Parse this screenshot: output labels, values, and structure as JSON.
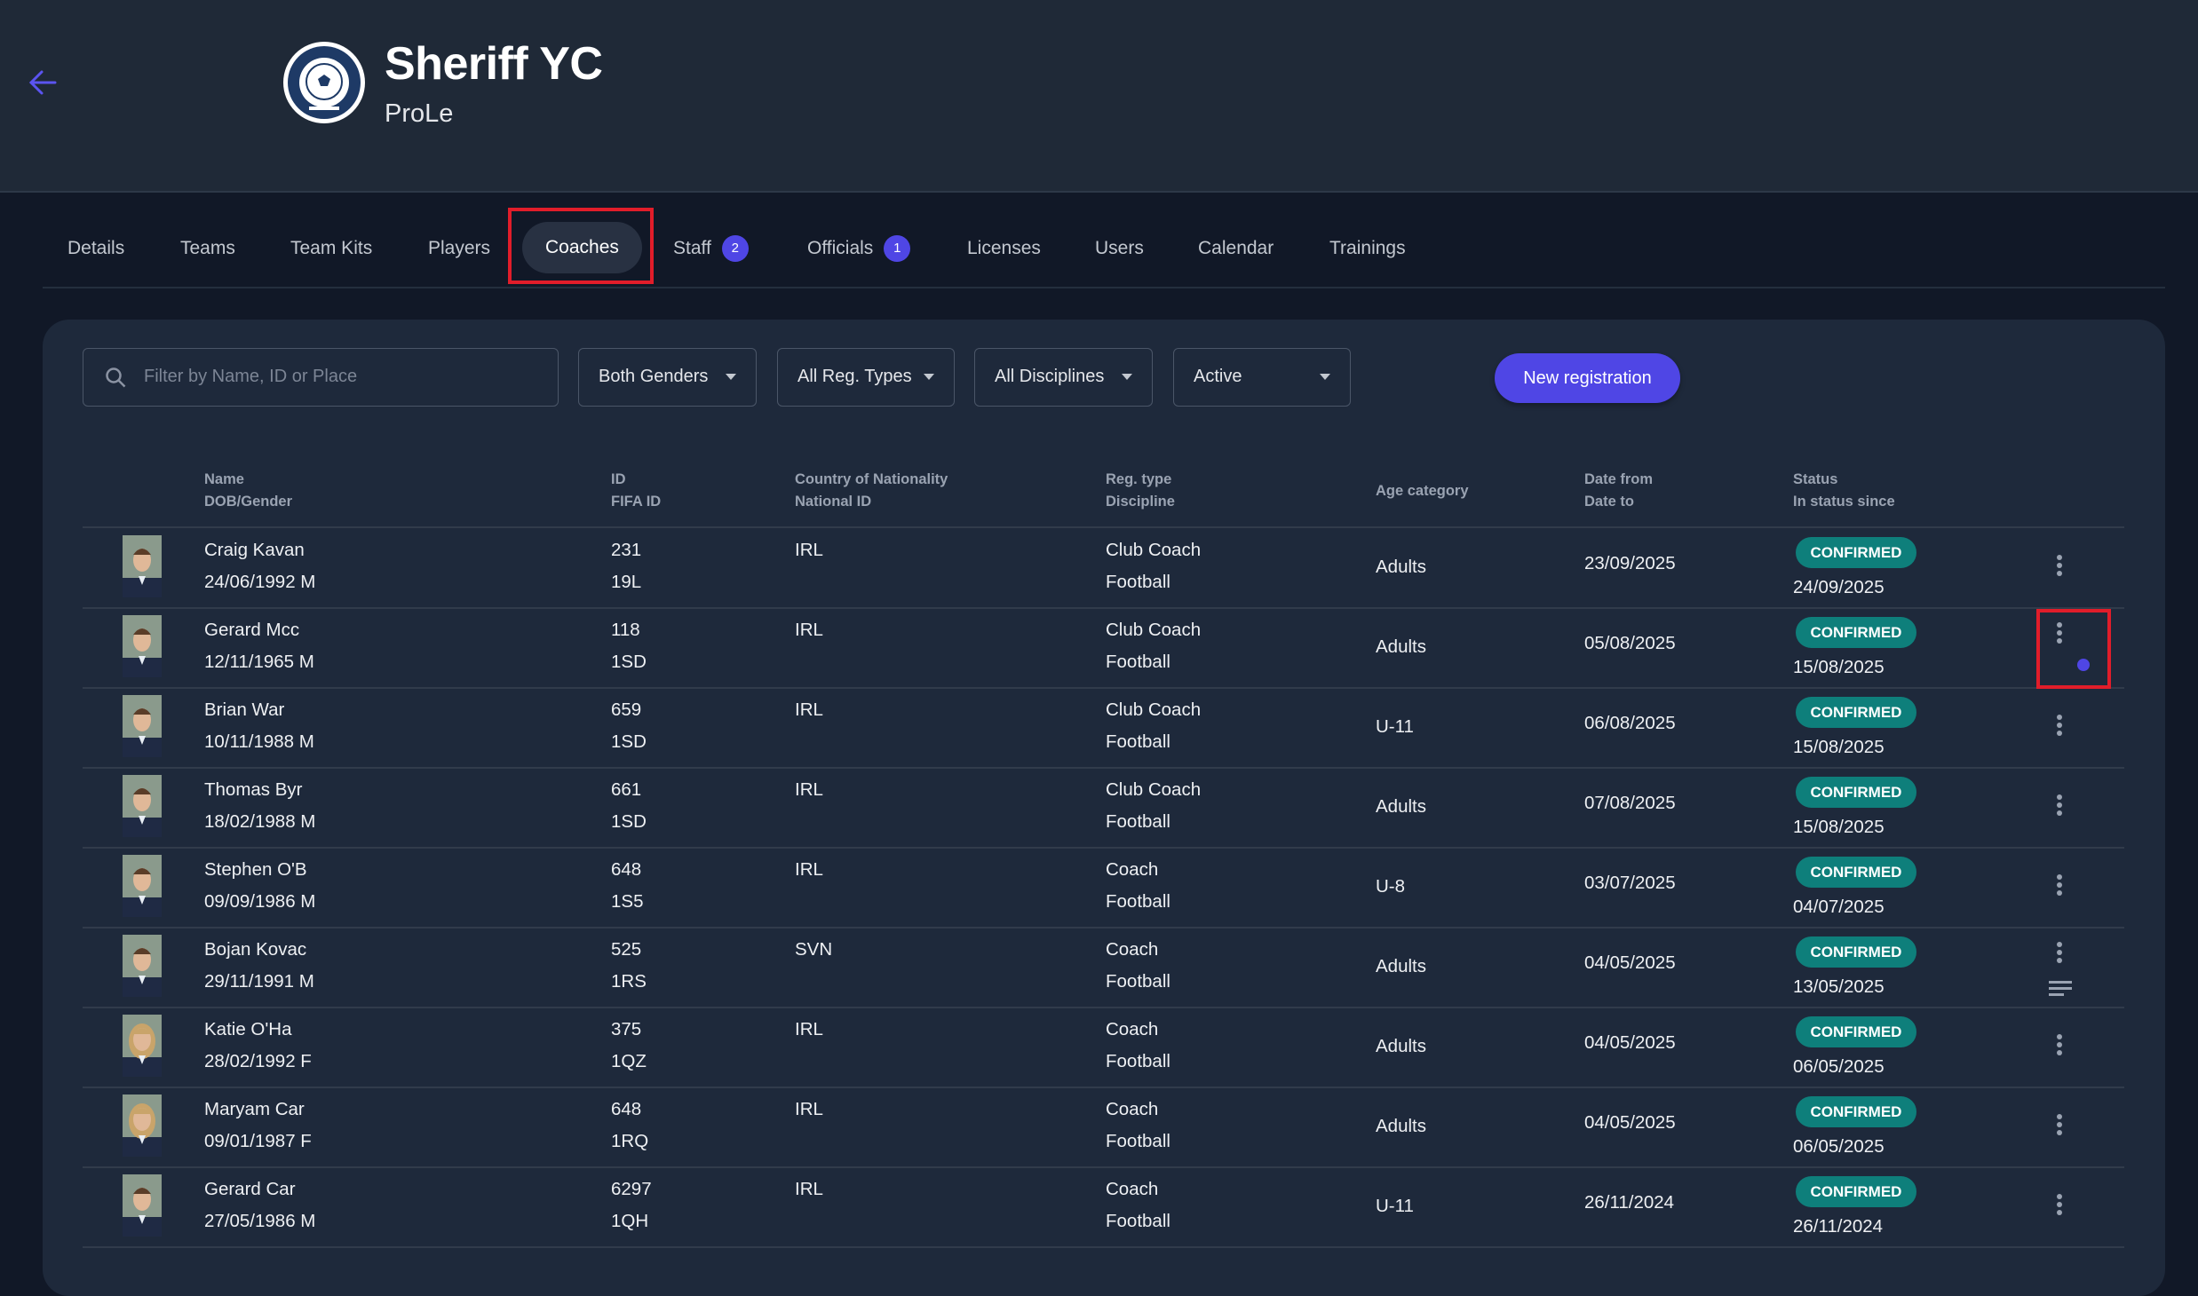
{
  "header": {
    "title": "Sheriff YC",
    "subtitle": "ProLe",
    "logo_text": "FOOTBALL CLUB"
  },
  "tabs": [
    {
      "label": "Details"
    },
    {
      "label": "Teams"
    },
    {
      "label": "Team Kits"
    },
    {
      "label": "Players"
    },
    {
      "label": "Coaches",
      "active": true
    },
    {
      "label": "Staff",
      "badge": "2"
    },
    {
      "label": "Officials",
      "badge": "1"
    },
    {
      "label": "Licenses"
    },
    {
      "label": "Users"
    },
    {
      "label": "Calendar"
    },
    {
      "label": "Trainings"
    }
  ],
  "filters": {
    "search_placeholder": "Filter by Name, ID or Place",
    "gender": "Both Genders",
    "reg_type": "All Reg. Types",
    "discipline": "All Disciplines",
    "status": "Active"
  },
  "new_registration_label": "New registration",
  "columns": {
    "name": "Name",
    "dob": "DOB/Gender",
    "id": "ID",
    "fifa": "FIFA ID",
    "country": "Country of Nationality",
    "national": "National ID",
    "reg": "Reg. type",
    "discipline": "Discipline",
    "age": "Age category",
    "from": "Date from",
    "to": "Date to",
    "status": "Status",
    "since": "In status since"
  },
  "colors": {
    "accent": "#4f46e5",
    "confirmed": "#0e7f7b",
    "highlight": "#e11d2a"
  },
  "rows": [
    {
      "name": "Craig Kavan",
      "dob": "24/06/1992 M",
      "id": "231",
      "fifa": "19L",
      "country": "IRL",
      "reg": "Club Coach",
      "discipline": "Football",
      "age": "Adults",
      "from": "23/09/2025",
      "status": "CONFIRMED",
      "since": "24/09/2025",
      "gender": "M"
    },
    {
      "name": "Gerard Mcc",
      "dob": "12/11/1965 M",
      "id": "118",
      "fifa": "1SD",
      "country": "IRL",
      "reg": "Club Coach",
      "discipline": "Football",
      "age": "Adults",
      "from": "05/08/2025",
      "status": "CONFIRMED",
      "since": "15/08/2025",
      "gender": "M"
    },
    {
      "name": "Brian War",
      "dob": "10/11/1988 M",
      "id": "659",
      "fifa": "1SD",
      "country": "IRL",
      "reg": "Club Coach",
      "discipline": "Football",
      "age": "U-11",
      "from": "06/08/2025",
      "status": "CONFIRMED",
      "since": "15/08/2025",
      "gender": "M"
    },
    {
      "name": "Thomas Byr",
      "dob": "18/02/1988 M",
      "id": "661",
      "fifa": "1SD",
      "country": "IRL",
      "reg": "Club Coach",
      "discipline": "Football",
      "age": "Adults",
      "from": "07/08/2025",
      "status": "CONFIRMED",
      "since": "15/08/2025",
      "gender": "M"
    },
    {
      "name": "Stephen O'B",
      "dob": "09/09/1986 M",
      "id": "648",
      "fifa": "1S5",
      "country": "IRL",
      "reg": "Coach",
      "discipline": "Football",
      "age": "U-8",
      "from": "03/07/2025",
      "status": "CONFIRMED",
      "since": "04/07/2025",
      "gender": "M"
    },
    {
      "name": "Bojan Kovac",
      "dob": "29/11/1991 M",
      "id": "525",
      "fifa": "1RS",
      "country": "SVN",
      "reg": "Coach",
      "discipline": "Football",
      "age": "Adults",
      "from": "04/05/2025",
      "status": "CONFIRMED",
      "since": "13/05/2025",
      "gender": "M"
    },
    {
      "name": "Katie O'Ha",
      "dob": "28/02/1992 F",
      "id": "375",
      "fifa": "1QZ",
      "country": "IRL",
      "reg": "Coach",
      "discipline": "Football",
      "age": "Adults",
      "from": "04/05/2025",
      "status": "CONFIRMED",
      "since": "06/05/2025",
      "gender": "F"
    },
    {
      "name": "Maryam Car",
      "dob": "09/01/1987 F",
      "id": "648",
      "fifa": "1RQ",
      "country": "IRL",
      "reg": "Coach",
      "discipline": "Football",
      "age": "Adults",
      "from": "04/05/2025",
      "status": "CONFIRMED",
      "since": "06/05/2025",
      "gender": "F"
    },
    {
      "name": "Gerard Car",
      "dob": "27/05/1986 M",
      "id": "6297",
      "fifa": "1QH",
      "country": "IRL",
      "reg": "Coach",
      "discipline": "Football",
      "age": "U-11",
      "from": "26/11/2024",
      "status": "CONFIRMED",
      "since": "26/11/2024",
      "gender": "M"
    }
  ]
}
